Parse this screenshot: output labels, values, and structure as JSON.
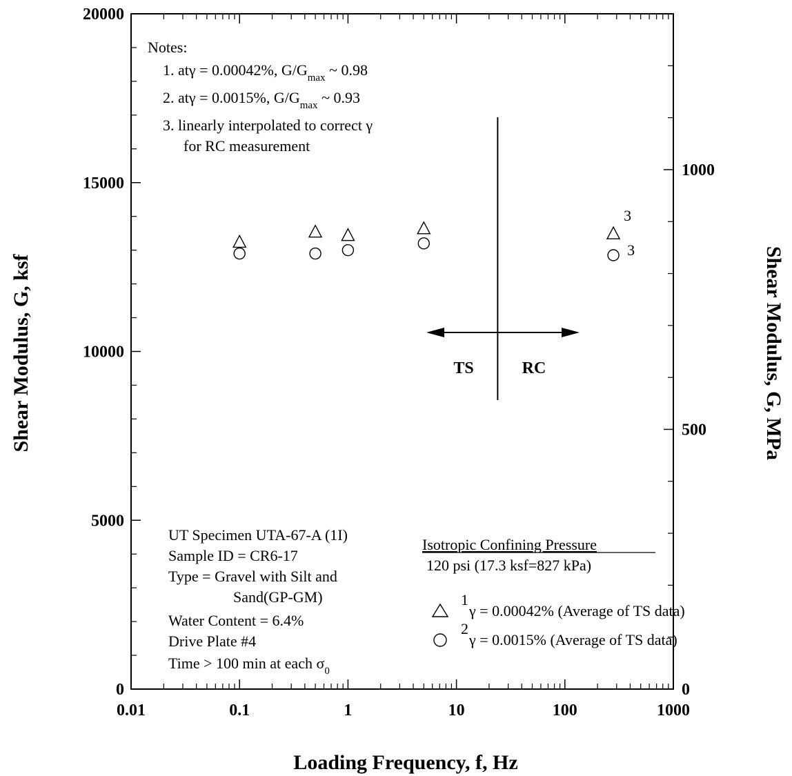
{
  "chart_data": {
    "type": "scatter",
    "x_scale": "log",
    "xlim": [
      0.01,
      1000
    ],
    "ylim": [
      0,
      20000
    ],
    "y2lim": [
      0,
      1300
    ],
    "xlabel": "Loading Frequency, f, Hz",
    "ylabel": "Shear Modulus, G, ksf",
    "y2label": "Shear Modulus, G, MPa",
    "x_ticks": [
      "0.01",
      "0.1",
      "1",
      "10",
      "100",
      "1000"
    ],
    "y_ticks": [
      "0",
      "5000",
      "10000",
      "15000",
      "20000"
    ],
    "y2_ticks": [
      "0",
      "500",
      "1000"
    ],
    "series": [
      {
        "marker": "triangle",
        "points": [
          {
            "x": 0.1,
            "y": 13250
          },
          {
            "x": 0.5,
            "y": 13550
          },
          {
            "x": 1,
            "y": 13450
          },
          {
            "x": 5,
            "y": 13650
          },
          {
            "x": 280,
            "y": 13500,
            "label": "3"
          }
        ]
      },
      {
        "marker": "circle",
        "points": [
          {
            "x": 0.1,
            "y": 12900
          },
          {
            "x": 0.5,
            "y": 12900
          },
          {
            "x": 1,
            "y": 13000
          },
          {
            "x": 5,
            "y": 13200
          },
          {
            "x": 280,
            "y": 12850,
            "label": "3"
          }
        ]
      }
    ],
    "divider_x": 24,
    "divider_labels": {
      "left": "TS",
      "right": "RC"
    },
    "notes": {
      "title": "Notes:",
      "n1_pre": "1. atγ = 0.00042%, G/G",
      "n1_sub": "max",
      "n1_post": " ~ 0.98",
      "n2_pre": "2. atγ = 0.0015%, G/G",
      "n2_sub": "max",
      "n2_post": " ~ 0.93",
      "n3a": "3. linearly interpolated to correct γ",
      "n3b": "for RC measurement"
    },
    "specimen": {
      "l1": "UT Specimen UTA-67-A (1I)",
      "l2": "Sample ID = CR6-17",
      "l3": "Type = Gravel with Silt and",
      "l4": "Sand(GP-GM)",
      "l5": "Water Content = 6.4%",
      "l6": "Drive Plate #4",
      "l7_pre": "Time > 100 min at each σ",
      "l7_sub": "0"
    },
    "pressure": {
      "title": "Isotropic  Confining  Pressure",
      "value": "120 psi (17.3 ksf=827 kPa)"
    },
    "legend": [
      {
        "marker": "triangle",
        "sup": "1",
        "text": "γ = 0.00042% (Average of TS data)"
      },
      {
        "marker": "circle",
        "sup": "2",
        "text": "γ = 0.0015% (Average of TS data)"
      }
    ]
  }
}
